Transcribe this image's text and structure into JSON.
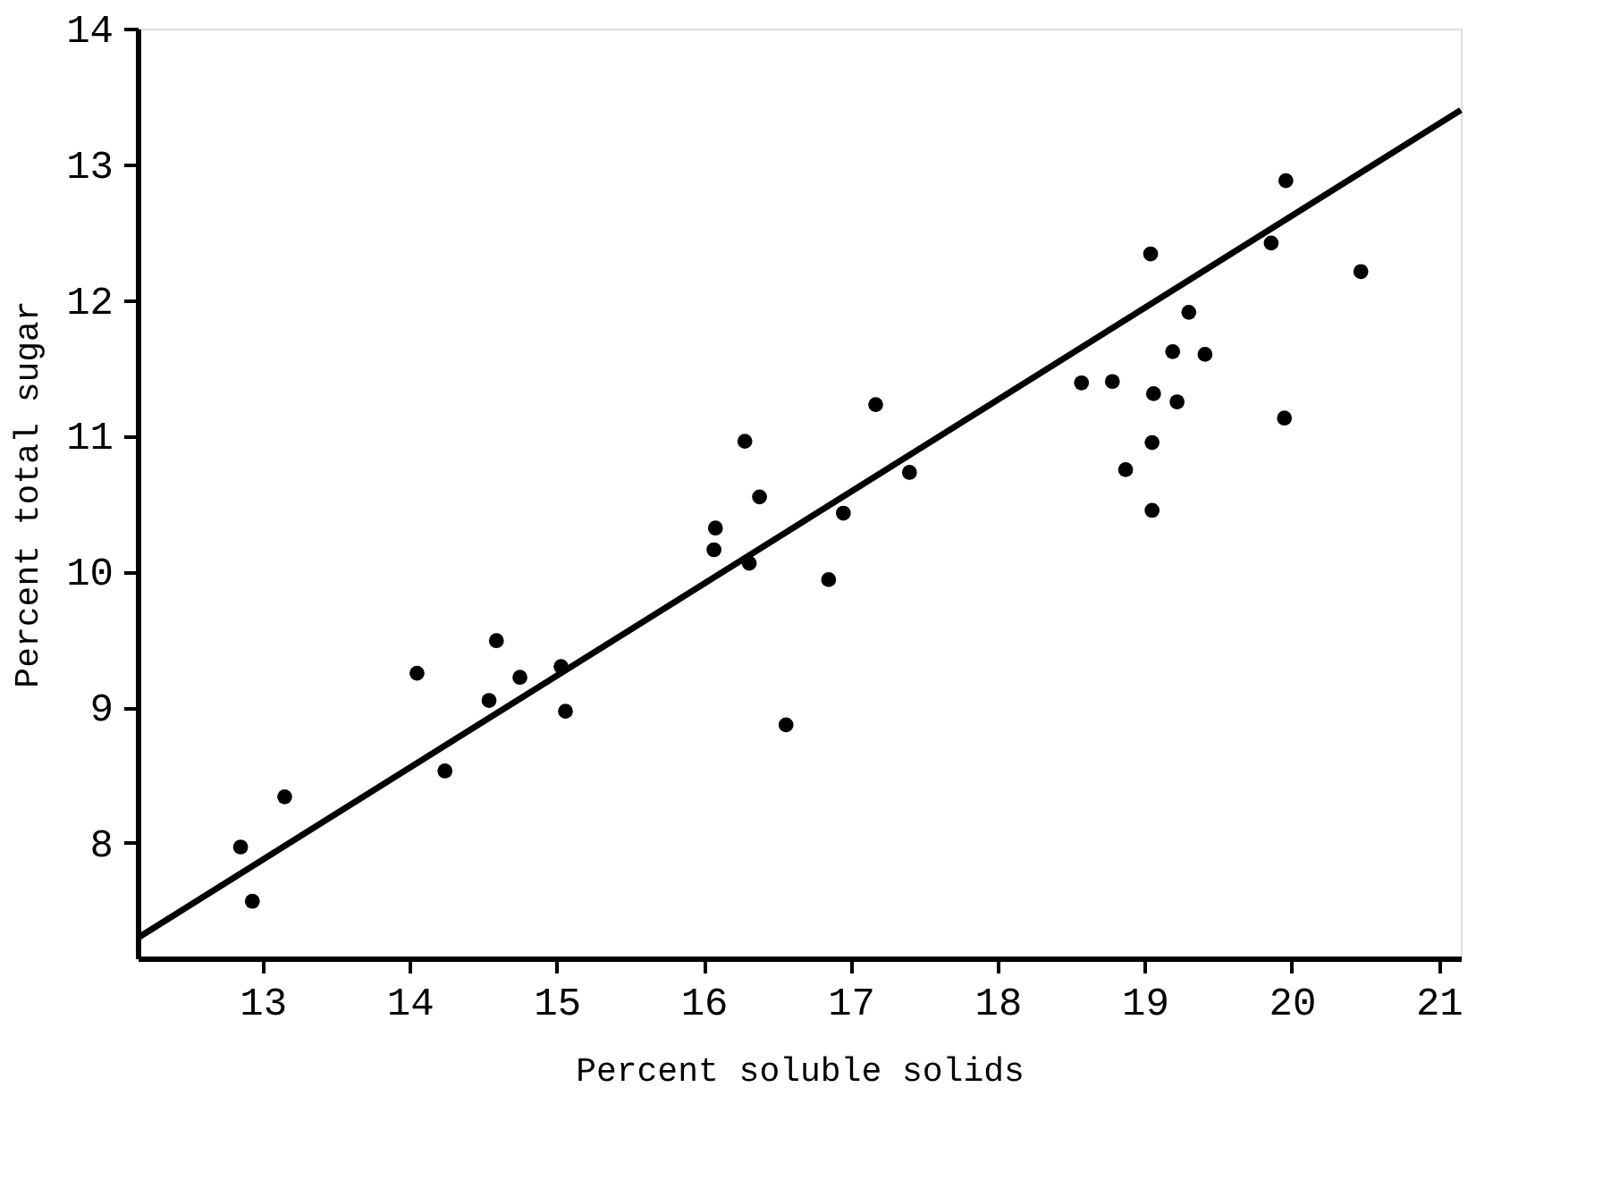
{
  "chart_data": {
    "type": "scatter",
    "xlabel": "Percent soluble solids",
    "ylabel": "Percent total sugar",
    "xlim": [
      12.15,
      21.15
    ],
    "xticks": [
      13,
      14,
      15,
      16,
      17,
      18,
      19,
      20,
      21
    ],
    "ylim": [
      7.15,
      14
    ],
    "yticks": [
      8,
      9,
      10,
      11,
      12,
      13,
      14
    ],
    "grid": false,
    "legend": false,
    "marker": "circle",
    "series": [
      {
        "type": "scatter",
        "color": "#000000",
        "x": [
          12.85,
          12.93,
          13.15,
          14.05,
          14.24,
          14.59,
          14.54,
          14.75,
          15.03,
          15.06,
          16.07,
          16.08,
          16.28,
          16.38,
          16.31,
          16.56,
          16.85,
          16.95,
          17.17,
          17.4,
          19.96,
          19.04,
          19.86,
          20.47,
          19.3,
          19.19,
          19.41,
          18.57,
          18.78,
          19.06,
          19.22,
          19.95,
          19.05,
          18.87,
          19.05
        ],
        "values": [
          7.97,
          7.57,
          8.34,
          9.25,
          8.53,
          9.49,
          9.05,
          9.22,
          9.3,
          8.97,
          10.16,
          10.32,
          10.96,
          10.55,
          10.06,
          8.87,
          9.94,
          10.43,
          11.23,
          10.73,
          12.88,
          12.34,
          12.42,
          12.21,
          11.91,
          11.62,
          11.6,
          11.39,
          11.4,
          11.31,
          11.25,
          11.13,
          10.95,
          10.75,
          10.45
        ]
      },
      {
        "type": "line",
        "color": "#000000",
        "marker": "none",
        "line_style": "solid",
        "x": [
          12.15,
          21.15
        ],
        "values": [
          7.3,
          13.4
        ]
      }
    ]
  }
}
